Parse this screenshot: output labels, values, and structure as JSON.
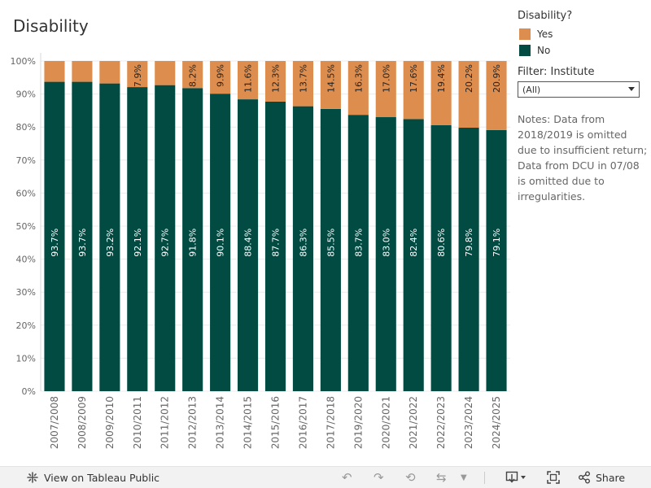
{
  "title": "Disability",
  "legend": {
    "title": "Disability?",
    "items": [
      {
        "label": "Yes",
        "color": "#DD8E4F"
      },
      {
        "label": "No",
        "color": "#024B43"
      }
    ]
  },
  "filter": {
    "title": "Filter: Institute",
    "selected": "(All)"
  },
  "notes": "Notes: Data from 2018/2019 is omitted due to insufficient return; Data from DCU in 07/08 is omitted due to irregularities.",
  "footer": {
    "view_label": "View on Tableau Public",
    "share_label": "Share"
  },
  "chart_data": {
    "type": "bar",
    "stacked": true,
    "title": "Disability",
    "xlabel": "",
    "ylabel": "",
    "ylim": [
      0,
      100
    ],
    "yticks": [
      "0%",
      "10%",
      "20%",
      "30%",
      "40%",
      "50%",
      "60%",
      "70%",
      "80%",
      "90%",
      "100%"
    ],
    "categories": [
      "2007/2008",
      "2008/2009",
      "2009/2010",
      "2010/2011",
      "2011/2012",
      "2012/2013",
      "2013/2014",
      "2014/2015",
      "2015/2016",
      "2016/2017",
      "2017/2018",
      "2019/2020",
      "2020/2021",
      "2021/2022",
      "2022/2023",
      "2023/2024",
      "2024/2025"
    ],
    "series": [
      {
        "name": "No",
        "color": "#024B43",
        "values": [
          93.7,
          93.7,
          93.2,
          92.1,
          92.7,
          91.8,
          90.1,
          88.4,
          87.7,
          86.3,
          85.5,
          83.7,
          83.0,
          82.4,
          80.6,
          79.8,
          79.1
        ],
        "labels": [
          "93.7%",
          "93.7%",
          "93.2%",
          "92.1%",
          "92.7%",
          "91.8%",
          "90.1%",
          "88.4%",
          "87.7%",
          "86.3%",
          "85.5%",
          "83.7%",
          "83.0%",
          "82.4%",
          "80.6%",
          "79.8%",
          "79.1%"
        ]
      },
      {
        "name": "Yes",
        "color": "#DD8E4F",
        "values": [
          6.3,
          6.3,
          6.8,
          7.9,
          7.3,
          8.2,
          9.9,
          11.6,
          12.3,
          13.7,
          14.5,
          16.3,
          17.0,
          17.6,
          19.4,
          20.2,
          20.9
        ],
        "labels": [
          "",
          "",
          "",
          "7.9%",
          "",
          "8.2%",
          "9.9%",
          "11.6%",
          "12.3%",
          "13.7%",
          "14.5%",
          "16.3%",
          "17.0%",
          "17.6%",
          "19.4%",
          "20.2%",
          "20.9%"
        ]
      }
    ]
  }
}
